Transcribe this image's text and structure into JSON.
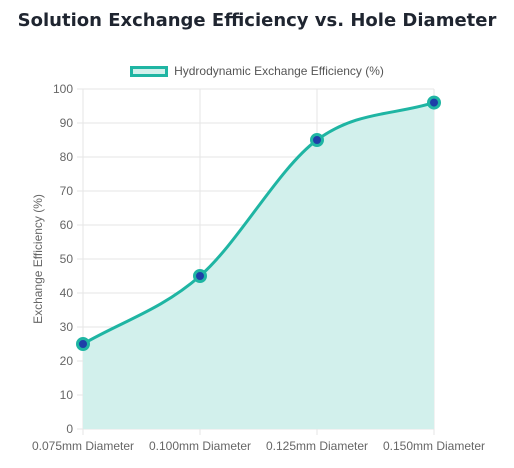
{
  "chart_data": {
    "type": "area",
    "title": "Solution Exchange Efficiency vs. Hole Diameter",
    "xlabel": "",
    "ylabel": "Exchange Efficiency (%)",
    "categories": [
      "0.075mm Diameter",
      "0.100mm Diameter",
      "0.125mm Diameter",
      "0.150mm Diameter"
    ],
    "series": [
      {
        "name": "Hydrodynamic Exchange Efficiency (%)",
        "values": [
          25,
          45,
          85,
          96
        ]
      }
    ],
    "ylim": [
      0,
      100
    ],
    "yticks": [
      0,
      10,
      20,
      30,
      40,
      50,
      60,
      70,
      80,
      90,
      100
    ],
    "grid": true,
    "legend_position": "top",
    "colors": {
      "line": "#1fb5a3",
      "fill": "#d2f0ec",
      "point_fill": "#1e3fa8",
      "grid": "#e5e5e5"
    }
  }
}
